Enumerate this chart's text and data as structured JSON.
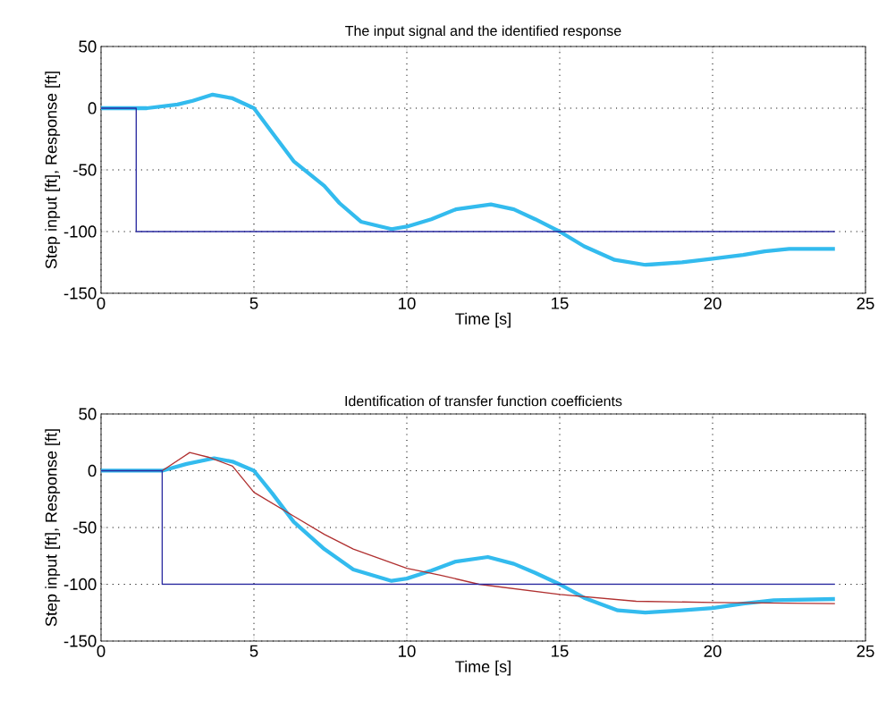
{
  "chart_data": [
    {
      "type": "line",
      "title": "The input signal and the identified response",
      "xlabel": "Time [s]",
      "ylabel": "Step input [ft], Response [ft]",
      "xlim": [
        0,
        25
      ],
      "xticks": [
        0,
        5,
        10,
        15,
        20,
        25
      ],
      "ylim": [
        -150,
        50
      ],
      "yticks": [
        -150,
        -100,
        -50,
        0,
        50
      ],
      "grid": true,
      "series": [
        {
          "color": "#33bbee",
          "x": [
            0,
            1.5,
            2.5,
            3.0,
            3.65,
            4.3,
            5.0,
            5.6,
            6.3,
            7.3,
            7.8,
            8.5,
            9.5,
            10.0,
            10.8,
            11.6,
            12.75,
            13.5,
            14.2,
            15.0,
            15.8,
            16.8,
            17.8,
            19.0,
            20.0,
            21.0,
            21.7,
            22.5,
            24.0
          ],
          "values": [
            0,
            0,
            3,
            6,
            11,
            8,
            0,
            -20,
            -43,
            -63,
            -77,
            -92,
            -98,
            -96,
            -90,
            -82,
            -78,
            -82,
            -90,
            -100,
            -112,
            -123,
            -127,
            -125,
            -122,
            -119,
            -116,
            -114,
            -114
          ]
        },
        {
          "type": "step",
          "color": "#2a2aa0",
          "x": [
            0,
            1.15,
            24
          ],
          "values": [
            0,
            -100,
            -100
          ]
        }
      ]
    },
    {
      "type": "line",
      "title": "Identification of transfer function coefficients",
      "xlabel": "Time [s]",
      "ylabel": "Step input [ft], Response [ft]",
      "xlim": [
        0,
        25
      ],
      "xticks": [
        0,
        5,
        10,
        15,
        20,
        25
      ],
      "ylim": [
        -150,
        50
      ],
      "yticks": [
        -150,
        -100,
        -50,
        0,
        50
      ],
      "grid": true,
      "series": [
        {
          "color": "#33bbee",
          "x": [
            0,
            2.0,
            2.8,
            3.7,
            4.3,
            5.0,
            5.6,
            6.3,
            7.3,
            8.25,
            9.5,
            10.0,
            10.8,
            11.6,
            12.65,
            13.5,
            14.2,
            15.0,
            15.8,
            16.9,
            17.8,
            19.0,
            20.0,
            21.0,
            22.0,
            24.0
          ],
          "values": [
            0,
            0,
            6,
            11,
            8,
            0,
            -20,
            -45,
            -69,
            -87,
            -97,
            -95,
            -88,
            -80,
            -76,
            -82,
            -90,
            -100,
            -112,
            -123,
            -125,
            -123,
            -121,
            -117,
            -114,
            -113
          ]
        },
        {
          "color": "#b03030",
          "x": [
            2.0,
            2.9,
            3.5,
            4.3,
            5.0,
            6.3,
            7.3,
            8.25,
            10.0,
            11.1,
            12.36,
            15.0,
            17.5,
            20.0,
            24.0
          ],
          "values": [
            0,
            16,
            12,
            4,
            -19,
            -40,
            -56,
            -69,
            -86,
            -92,
            -100,
            -109,
            -115,
            -116,
            -117
          ]
        },
        {
          "type": "step",
          "color": "#2a2aa0",
          "x": [
            0,
            2.0,
            24
          ],
          "values": [
            0,
            -100,
            -100
          ]
        }
      ]
    }
  ]
}
